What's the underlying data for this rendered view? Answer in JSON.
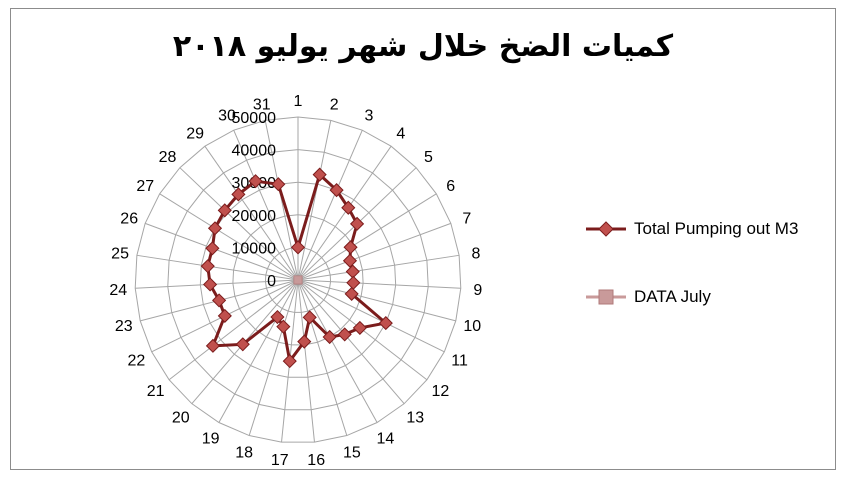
{
  "chart_data": {
    "type": "radar",
    "title": "كميات الضخ  خلال شهر يوليو ٢٠١٨",
    "categories": [
      "1",
      "2",
      "3",
      "4",
      "5",
      "6",
      "7",
      "8",
      "9",
      "10",
      "11",
      "12",
      "13",
      "14",
      "15",
      "16",
      "17",
      "18",
      "19",
      "20",
      "21",
      "22",
      "23",
      "24",
      "25",
      "26",
      "27",
      "28",
      "29",
      "30",
      "31"
    ],
    "radial_ticks": [
      "0",
      "10000",
      "20000",
      "30000",
      "40000",
      "50000"
    ],
    "rmax": 50000,
    "grid": true,
    "legend_position": "right",
    "series": [
      {
        "name": "Total  Pumping out M3",
        "color": "#7b1c1c",
        "marker": "diamond",
        "values": [
          10000,
          33000,
          30000,
          27000,
          25000,
          19000,
          17000,
          17000,
          17000,
          17000,
          30000,
          24000,
          22000,
          20000,
          12000,
          19000,
          25000,
          15000,
          13000,
          26000,
          33000,
          25000,
          25000,
          27000,
          28000,
          28000,
          30000,
          31000,
          32000,
          33000,
          30000
        ]
      },
      {
        "name": "DATA July",
        "color": "#c99a9a",
        "marker": "square",
        "values": [
          1,
          2,
          3,
          4,
          5,
          6,
          7,
          8,
          9,
          10,
          11,
          12,
          13,
          14,
          15,
          16,
          17,
          18,
          19,
          20,
          21,
          22,
          23,
          24,
          25,
          26,
          27,
          28,
          29,
          30,
          31
        ]
      }
    ]
  }
}
